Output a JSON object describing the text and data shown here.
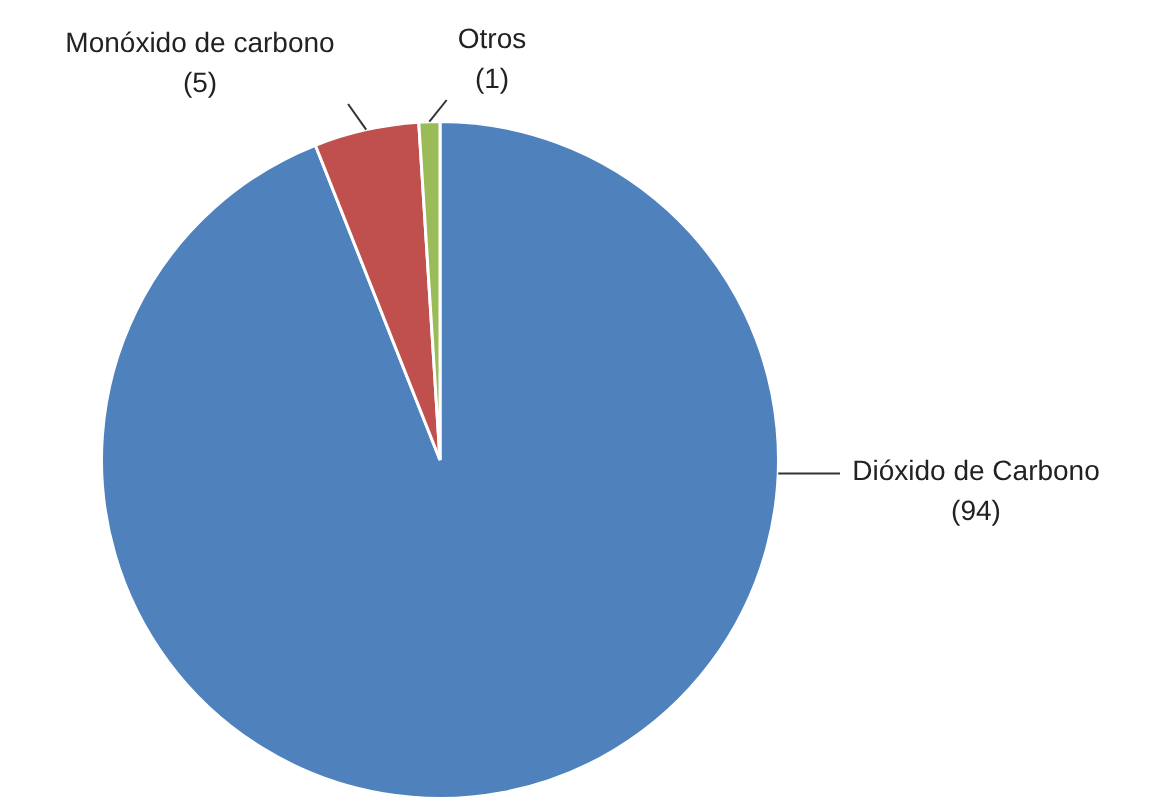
{
  "chart_data": {
    "type": "pie",
    "categories": [
      "Dióxido de Carbono",
      "Monóxido de carbono",
      "Otros"
    ],
    "values": [
      94,
      5,
      1
    ],
    "value_labels": [
      "(94)",
      "(5)",
      "(1)"
    ],
    "colors": [
      "#4f81bd",
      "#c0504d",
      "#9bbb59"
    ],
    "legend": false
  }
}
